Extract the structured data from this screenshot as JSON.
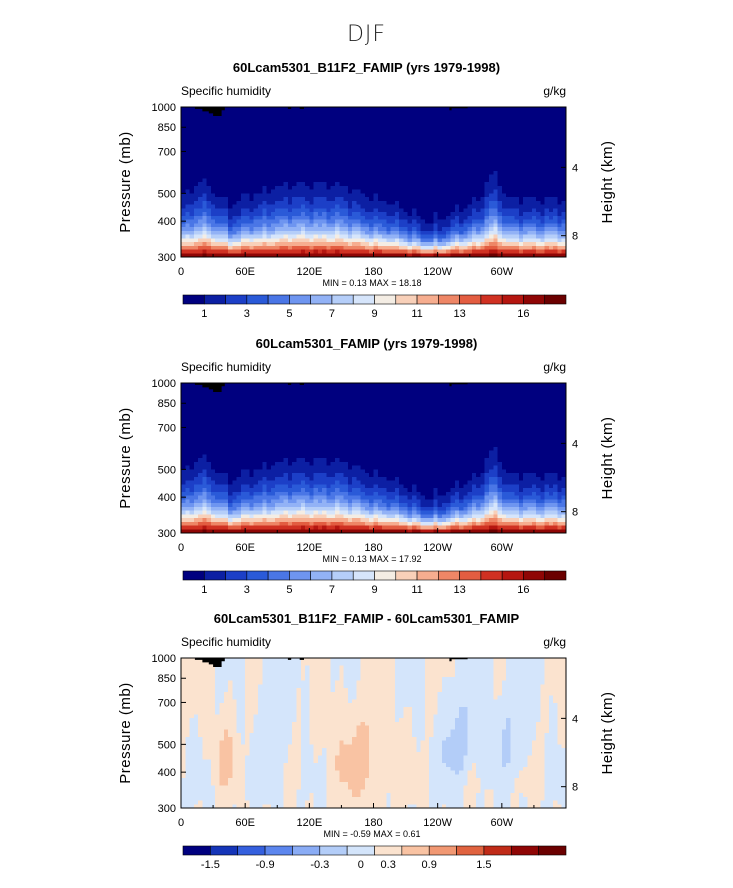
{
  "page": {
    "season": "DJF"
  },
  "chart_data": [
    {
      "type": "contour",
      "title": "60Lcam5301_B11F2_FAMIP (yrs 1979-1998)",
      "left_label": "Specific humidity",
      "right_label": "g/kg",
      "ylabel": "Pressure (mb)",
      "ylabel_right": "Height (km)",
      "yticks": [
        300,
        400,
        500,
        700,
        850,
        1000
      ],
      "yticks_right": [
        8,
        4
      ],
      "xticks": [
        "0",
        "60E",
        "120E",
        "180",
        "120W",
        "60W"
      ],
      "xlim": [
        0,
        360
      ],
      "ylim": [
        1000,
        300
      ],
      "stats": "MIN =    0.13   MAX =   18.18",
      "min": 0.13,
      "max": 18.18,
      "levels": [
        1,
        2,
        3,
        4,
        5,
        6,
        7,
        8,
        9,
        10,
        11,
        12,
        13,
        14,
        15,
        16,
        17
      ],
      "colorbar_labels": [
        "1",
        "3",
        "5",
        "7",
        "9",
        "11",
        "13",
        "16"
      ],
      "variant": "full"
    },
    {
      "type": "contour",
      "title": "60Lcam5301_FAMIP (yrs 1979-1998)",
      "left_label": "Specific humidity",
      "right_label": "g/kg",
      "ylabel": "Pressure (mb)",
      "ylabel_right": "Height (km)",
      "yticks": [
        300,
        400,
        500,
        700,
        850,
        1000
      ],
      "yticks_right": [
        8,
        4
      ],
      "xticks": [
        "0",
        "60E",
        "120E",
        "180",
        "120W",
        "60W"
      ],
      "xlim": [
        0,
        360
      ],
      "ylim": [
        1000,
        300
      ],
      "stats": "MIN =    0.13   MAX =   17.92",
      "min": 0.13,
      "max": 17.92,
      "levels": [
        1,
        2,
        3,
        4,
        5,
        6,
        7,
        8,
        9,
        10,
        11,
        12,
        13,
        14,
        15,
        16,
        17
      ],
      "colorbar_labels": [
        "1",
        "3",
        "5",
        "7",
        "9",
        "11",
        "13",
        "16"
      ],
      "variant": "full"
    },
    {
      "type": "contour",
      "title": "60Lcam5301_B11F2_FAMIP - 60Lcam5301_FAMIP",
      "left_label": "Specific humidity",
      "right_label": "g/kg",
      "ylabel": "Pressure (mb)",
      "ylabel_right": "Height (km)",
      "yticks": [
        300,
        400,
        500,
        700,
        850,
        1000
      ],
      "yticks_right": [
        8,
        4
      ],
      "xticks": [
        "0",
        "60E",
        "120E",
        "180",
        "120W",
        "60W"
      ],
      "xlim": [
        0,
        360
      ],
      "ylim": [
        1000,
        300
      ],
      "stats": "MIN =   -0.59   MAX =    0.61",
      "min": -0.59,
      "max": 0.61,
      "levels": [
        -1.8,
        -1.5,
        -1.2,
        -0.9,
        -0.6,
        -0.3,
        0,
        0.3,
        0.6,
        0.9,
        1.2,
        1.5,
        1.8
      ],
      "colorbar_labels": [
        "-1.5",
        "-0.9",
        "-0.3",
        "0",
        "0.3",
        "0.9",
        "1.5"
      ],
      "variant": "diff"
    }
  ],
  "colors": {
    "full": [
      "#00007f",
      "#0c1fa3",
      "#1c3fc7",
      "#2a5ad8",
      "#4a76e6",
      "#6e95f0",
      "#92b2f6",
      "#b5cef9",
      "#d6e5fb",
      "#f4ede4",
      "#f8d0b9",
      "#f6ad8f",
      "#ee8666",
      "#e35d41",
      "#d03122",
      "#b51610",
      "#8f0605",
      "#6b0000"
    ],
    "diff": [
      "#00007f",
      "#1535b8",
      "#3560de",
      "#5c86ee",
      "#8aacf5",
      "#b3cdf8",
      "#d4e5fb",
      "#fbe3cf",
      "#f9c3a3",
      "#f19873",
      "#e0633f",
      "#c02b18",
      "#8f0605",
      "#6b0000"
    ]
  }
}
